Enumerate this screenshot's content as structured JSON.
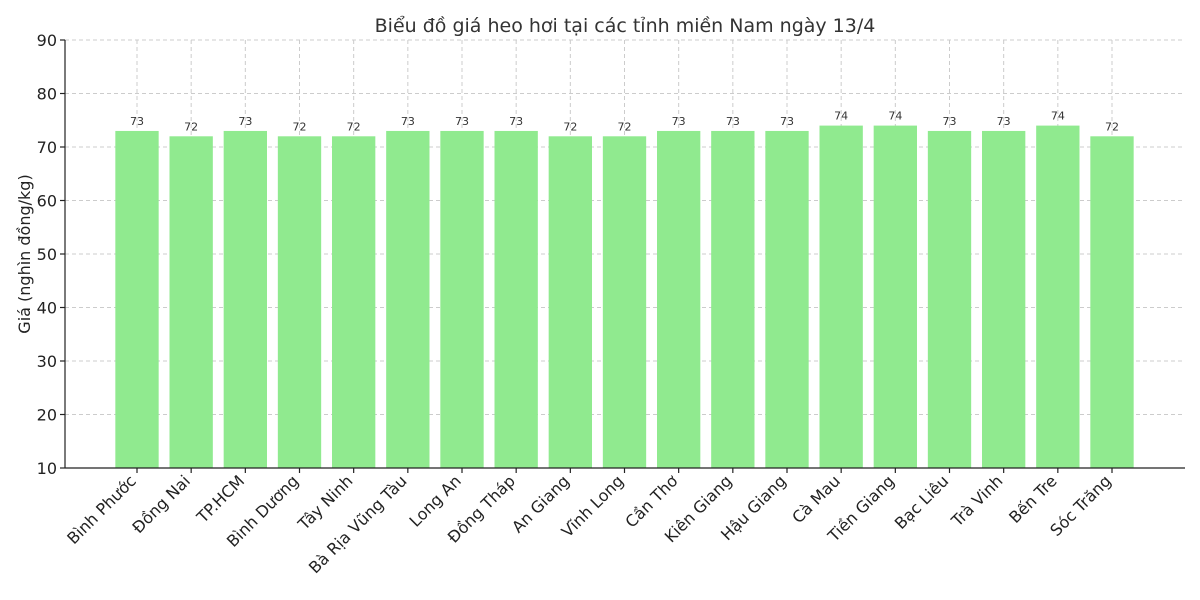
{
  "chart_data": {
    "type": "bar",
    "title": "Biểu đồ giá heo hơi tại các tỉnh miền Nam ngày 13/4",
    "xlabel": "",
    "ylabel": "Giá (nghìn đồng/kg)",
    "ylim": [
      10,
      90
    ],
    "yticks": [
      10,
      20,
      30,
      40,
      50,
      60,
      70,
      80,
      90
    ],
    "grid": true,
    "bar_color": "#90ea8f",
    "categories": [
      "Bình Phước",
      "Đồng Nai",
      "TP.HCM",
      "Bình Dương",
      "Tây Ninh",
      "Bà Rịa  Vũng Tàu",
      "Long An",
      "Đồng Tháp",
      "An Giang",
      "Vĩnh Long",
      "Cần Thơ",
      "Kiên Giang",
      "Hậu Giang",
      "Cà Mau",
      "Tiền Giang",
      "Bạc Liêu",
      "Trà Vinh",
      "Bến Tre",
      "Sóc Trăng"
    ],
    "values": [
      73,
      72,
      73,
      72,
      72,
      73,
      73,
      73,
      72,
      72,
      73,
      73,
      73,
      74,
      74,
      73,
      73,
      74,
      72
    ]
  }
}
